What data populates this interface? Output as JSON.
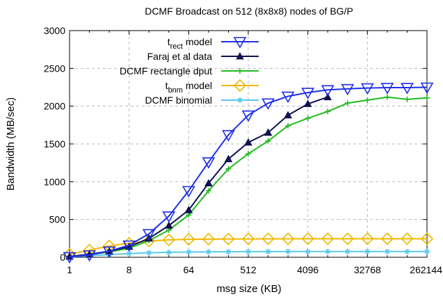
{
  "chart_data": {
    "type": "line",
    "title": "DCMF Broadcast on 512 (8x8x8) nodes of BG/P",
    "xlabel": "msg size (KB)",
    "ylabel": "Bandwidth (MB/sec)",
    "x_scale": "log2",
    "xlim": [
      1,
      262144
    ],
    "ylim": [
      0,
      3000
    ],
    "x_ticks": [
      1,
      8,
      64,
      512,
      4096,
      32768,
      262144
    ],
    "x_tick_labels": [
      "1",
      "8",
      "64",
      "512",
      "4096",
      "32768",
      "262144"
    ],
    "y_ticks": [
      0,
      500,
      1000,
      1500,
      2000,
      2500,
      3000
    ],
    "y_tick_labels": [
      "0",
      "500",
      "1000",
      "1500",
      "2000",
      "2500",
      "3000"
    ],
    "grid": true,
    "legend_position": "top-left",
    "series": [
      {
        "name": "t_rect model",
        "name_main": "t",
        "name_sub": "rect",
        "name_rest": " model",
        "color": "#1f2fe6",
        "marker": "triangle-down-open",
        "x": [
          1,
          2,
          4,
          8,
          16,
          32,
          64,
          128,
          256,
          512,
          1024,
          2048,
          4096,
          8192,
          16384,
          32768,
          65536,
          131072,
          262144
        ],
        "y": [
          5,
          30,
          80,
          160,
          310,
          545,
          880,
          1260,
          1620,
          1880,
          2040,
          2130,
          2180,
          2215,
          2230,
          2240,
          2245,
          2245,
          2250
        ]
      },
      {
        "name": "Faraj et al data",
        "color": "#101050",
        "marker": "triangle-up-filled",
        "x": [
          1,
          2,
          4,
          8,
          16,
          32,
          64,
          128,
          256,
          512,
          1024,
          2048,
          4096,
          8192
        ],
        "y": [
          10,
          40,
          80,
          140,
          250,
          420,
          625,
          980,
          1300,
          1520,
          1650,
          1880,
          2030,
          2120
        ]
      },
      {
        "name": "DCMF rectangle dput",
        "color": "#22bb22",
        "marker": "plus",
        "x": [
          1,
          2,
          4,
          8,
          16,
          32,
          64,
          128,
          256,
          512,
          1024,
          2048,
          4096,
          8192,
          16384,
          32768,
          65536,
          131072,
          262144
        ],
        "y": [
          10,
          35,
          70,
          120,
          220,
          360,
          560,
          880,
          1170,
          1370,
          1540,
          1740,
          1840,
          1930,
          2040,
          2080,
          2120,
          2090,
          2110
        ]
      },
      {
        "name": "t_bnm model",
        "name_main": "t",
        "name_sub": "bnm",
        "name_rest": " model",
        "color": "#f0b800",
        "marker": "diamond-open",
        "x": [
          1,
          2,
          4,
          8,
          16,
          32,
          64,
          128,
          256,
          512,
          1024,
          2048,
          4096,
          8192,
          16384,
          32768,
          65536,
          131072,
          262144
        ],
        "y": [
          40,
          95,
          150,
          185,
          215,
          230,
          237,
          240,
          242,
          243,
          244,
          244,
          245,
          245,
          245,
          245,
          245,
          245,
          245
        ]
      },
      {
        "name": "DCMF binomial",
        "color": "#5bc8ef",
        "marker": "star",
        "x": [
          1,
          2,
          4,
          8,
          16,
          32,
          64,
          128,
          256,
          512,
          1024,
          2048,
          4096,
          8192,
          16384,
          32768,
          65536,
          131072,
          262144
        ],
        "y": [
          5,
          20,
          35,
          50,
          60,
          65,
          70,
          72,
          74,
          75,
          75,
          76,
          76,
          76,
          76,
          76,
          76,
          76,
          76
        ]
      }
    ]
  }
}
